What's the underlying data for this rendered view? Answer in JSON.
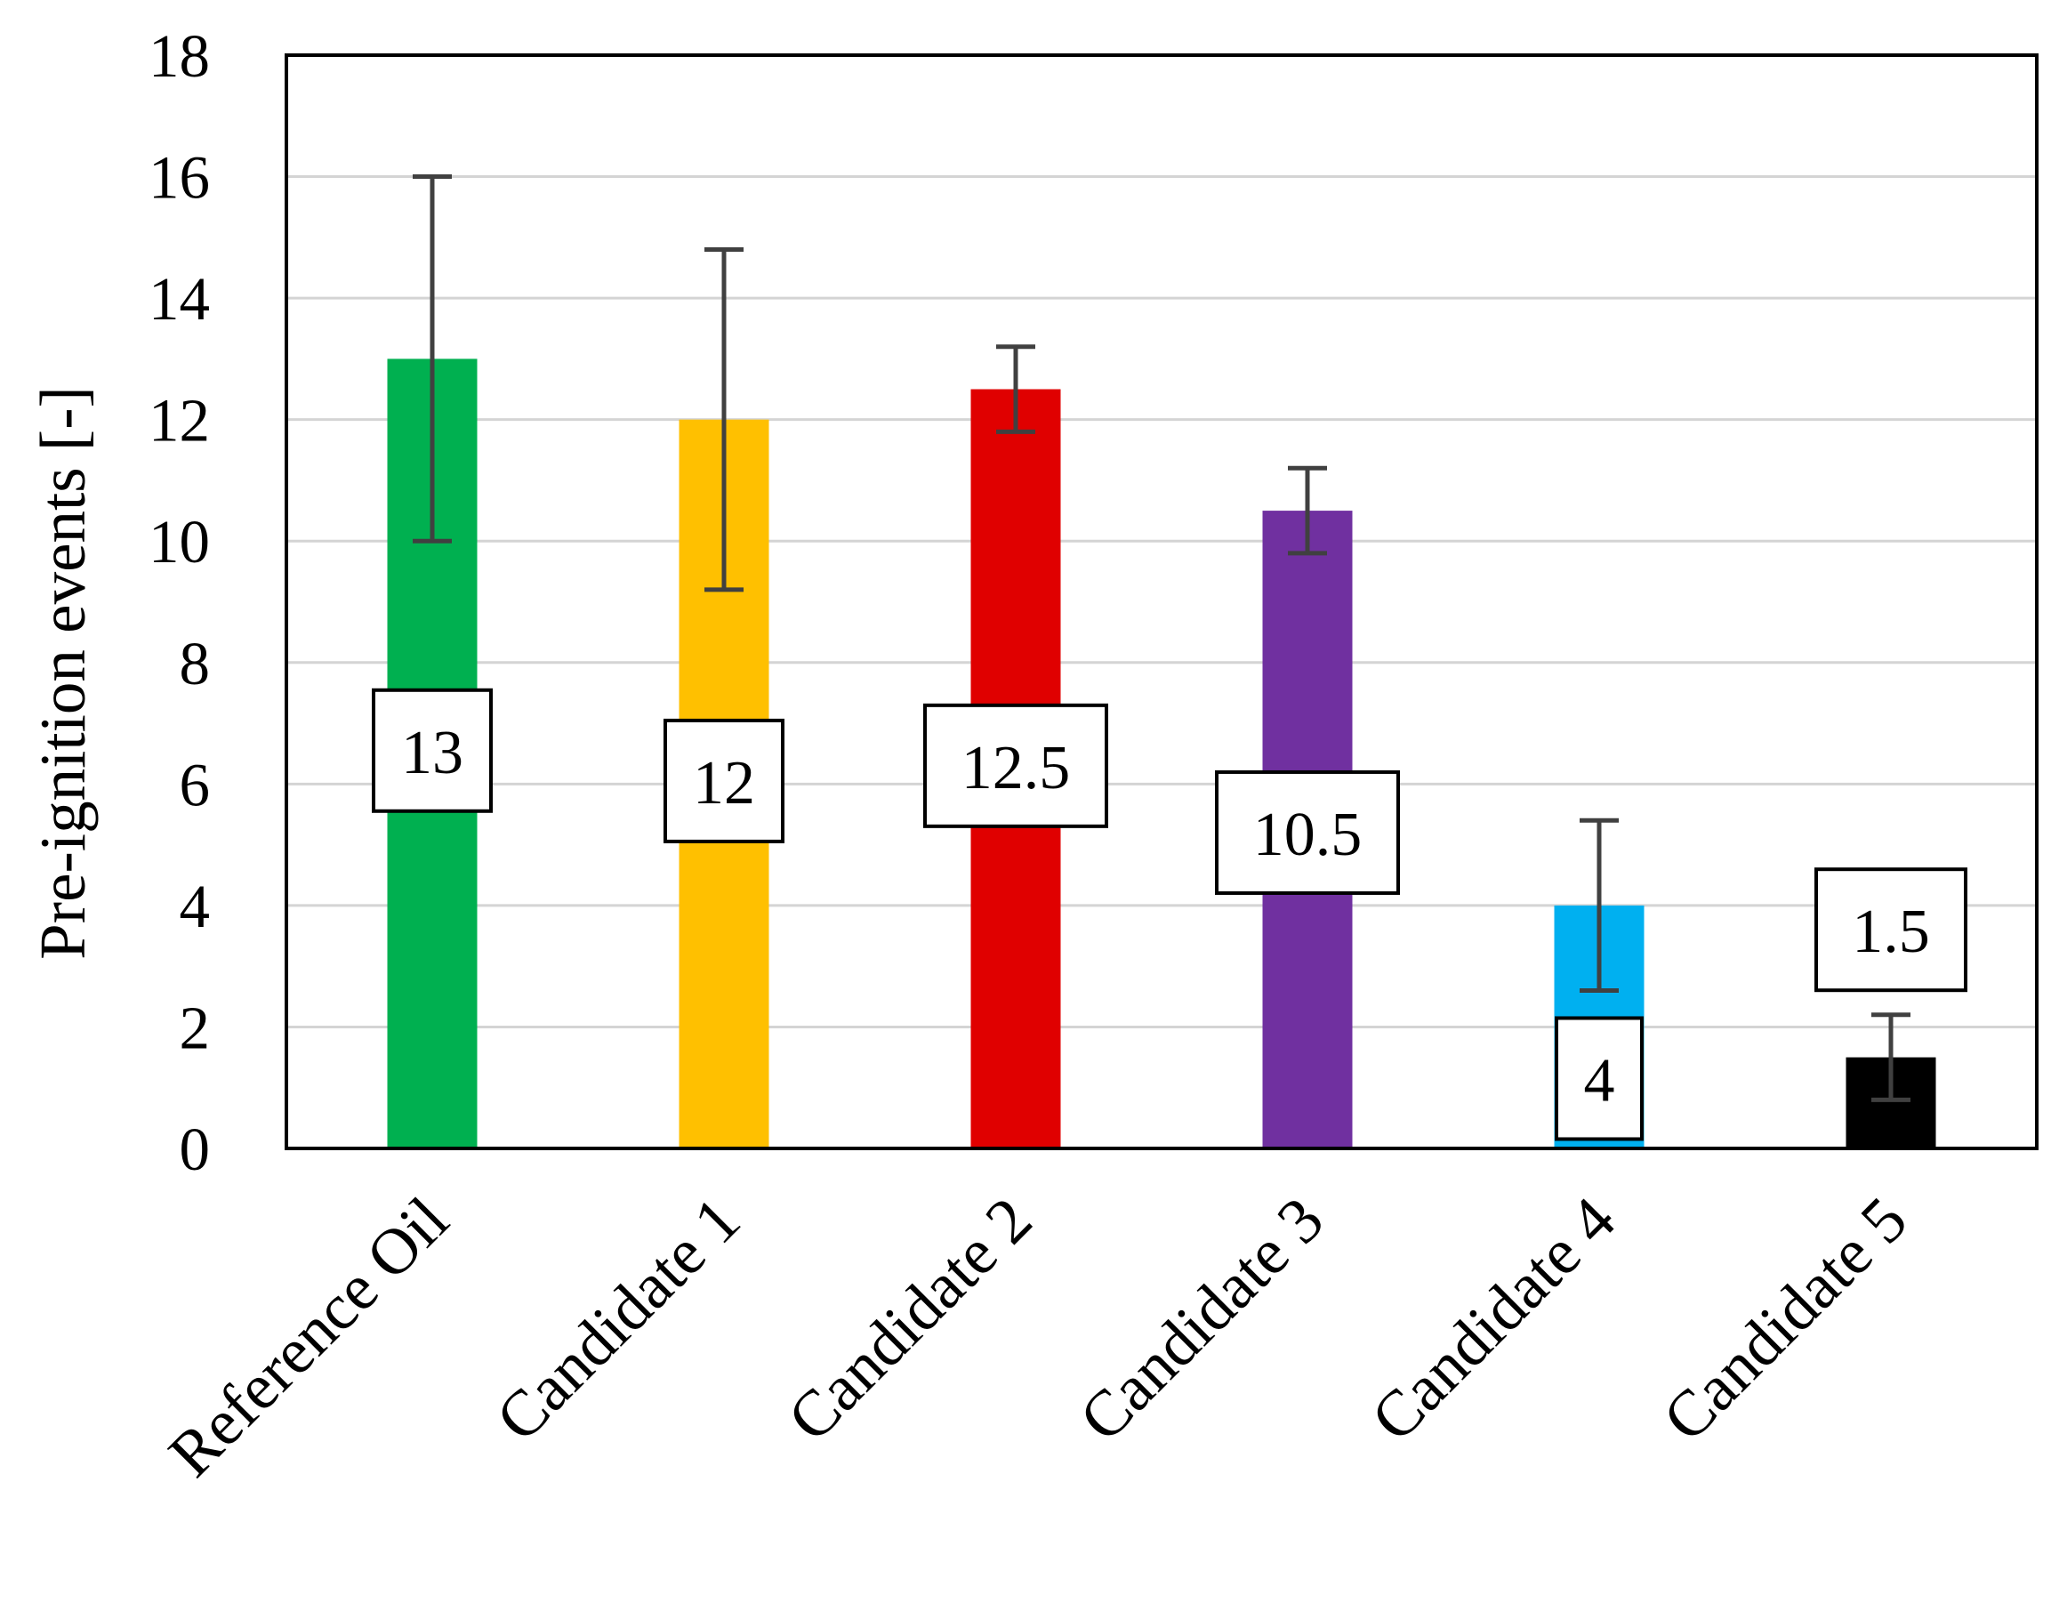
{
  "chart_data": {
    "type": "bar",
    "title": "",
    "xlabel": "",
    "ylabel": "Pre-ignition events [-]",
    "ylim": [
      0,
      18
    ],
    "yticks": [
      0,
      2,
      4,
      6,
      8,
      10,
      12,
      14,
      16,
      18
    ],
    "grid": true,
    "legend": "none",
    "categories": [
      "Reference Oil",
      "Candidate 1",
      "Candidate 2",
      "Candidate 3",
      "Candidate 4",
      "Candidate 5"
    ],
    "values": [
      13,
      12,
      12.5,
      10.5,
      4,
      1.5
    ],
    "data_labels": [
      "13",
      "12",
      "12.5",
      "10.5",
      "4",
      "1.5"
    ],
    "error_low": [
      10,
      9.2,
      11.8,
      9.8,
      2.6,
      0.8
    ],
    "error_high": [
      16,
      14.8,
      13.2,
      11.2,
      5.4,
      2.2
    ],
    "label_positions": [
      6.55,
      6.05,
      6.3,
      5.2,
      1.15,
      3.6
    ],
    "colors": [
      "#00b050",
      "#ffc000",
      "#e00000",
      "#7030a0",
      "#00b0f0",
      "#000000"
    ]
  }
}
